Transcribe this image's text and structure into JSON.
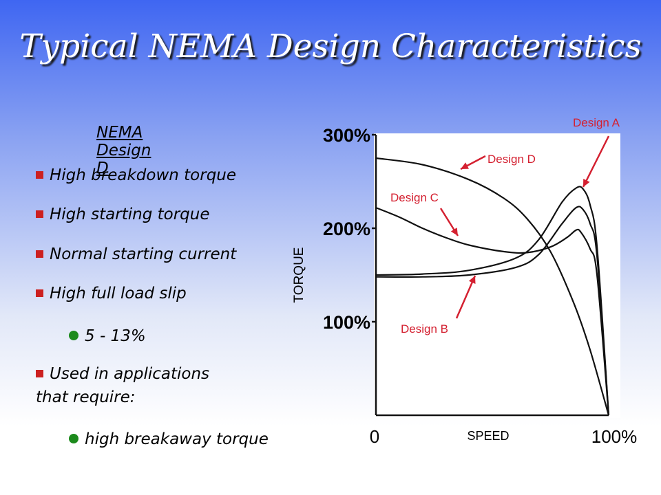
{
  "title": "Typical NEMA Design Characteristics",
  "left_panel": {
    "heading": "NEMA Design D",
    "bullets": [
      "High breakdown torque",
      "High starting torque",
      "Normal starting current",
      "High full load slip"
    ],
    "sub_bullet_1": "5 - 13%",
    "applications_line1": "Used in applications",
    "applications_line2": "that require:",
    "sub_bullet_2": "high breakaway torque"
  },
  "colors": {
    "bullet_square": "#cc2020",
    "bullet_dot": "#1c8a1c",
    "annotation": "#d42030"
  },
  "chart_data": {
    "type": "line",
    "xlabel": "SPEED",
    "ylabel": "TORQUE",
    "x_tick_labels": [
      "0",
      "100%"
    ],
    "y_tick_labels": [
      "100%",
      "200%",
      "300%"
    ],
    "y_ticks": [
      100,
      200,
      300
    ],
    "xlim": [
      0,
      100
    ],
    "ylim": [
      0,
      300
    ],
    "grid": false,
    "series": [
      {
        "name": "Design A",
        "x": [
          0,
          20,
          40,
          60,
          70,
          80,
          86,
          89,
          92,
          95,
          100
        ],
        "y": [
          150,
          151,
          155,
          168,
          188,
          228,
          243,
          242,
          225,
          180,
          0
        ]
      },
      {
        "name": "Design B",
        "x": [
          0,
          20,
          40,
          60,
          70,
          80,
          86,
          89,
          92,
          95,
          100
        ],
        "y": [
          148,
          148,
          150,
          158,
          172,
          205,
          222,
          220,
          205,
          170,
          0
        ]
      },
      {
        "name": "Design C",
        "x": [
          0,
          10,
          20,
          30,
          40,
          55,
          65,
          75,
          82,
          86,
          88,
          92,
          95,
          100
        ],
        "y": [
          222,
          212,
          200,
          190,
          182,
          175,
          174,
          180,
          190,
          198,
          196,
          178,
          150,
          0
        ]
      },
      {
        "name": "Design D",
        "x": [
          0,
          20,
          40,
          55,
          65,
          75,
          85,
          92,
          100
        ],
        "y": [
          275,
          268,
          252,
          232,
          210,
          175,
          120,
          70,
          0
        ]
      }
    ],
    "annotations": [
      "Design A",
      "Design D",
      "Design C",
      "Design B"
    ]
  }
}
